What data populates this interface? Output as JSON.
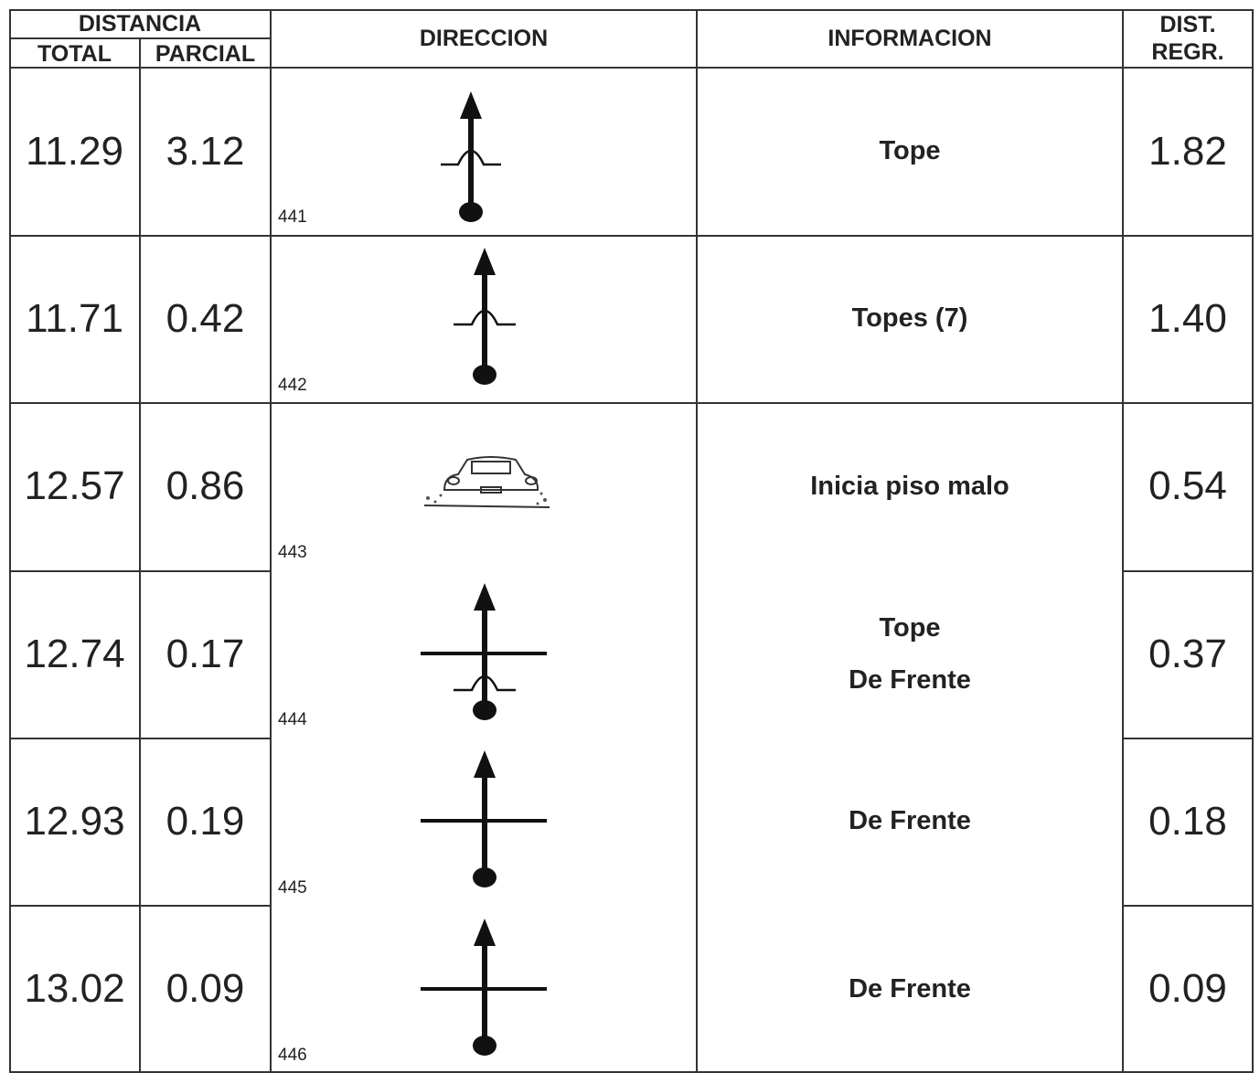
{
  "header": {
    "distancia": "DISTANCIA",
    "total": "TOTAL",
    "parcial": "PARCIAL",
    "direccion": "DIRECCION",
    "informacion": "INFORMACION",
    "dist_regr": [
      "DIST.",
      "REGR."
    ]
  },
  "rows": [
    {
      "total": "11.29",
      "parcial": "3.12",
      "id": "441",
      "info": [
        "Tope"
      ],
      "regr": "1.82"
    },
    {
      "total": "11.71",
      "parcial": "0.42",
      "id": "442",
      "info": [
        "Topes (7)"
      ],
      "regr": "1.40"
    },
    {
      "total": "12.57",
      "parcial": "0.86",
      "id": "443",
      "info": [
        "Inicia piso malo"
      ],
      "regr": "0.54"
    },
    {
      "total": "12.74",
      "parcial": "0.17",
      "id": "444",
      "info": [
        "Tope",
        "De Frente"
      ],
      "regr": "0.37"
    },
    {
      "total": "12.93",
      "parcial": "0.19",
      "id": "445",
      "info": [
        "De Frente"
      ],
      "regr": "0.18"
    },
    {
      "total": "13.02",
      "parcial": "0.09",
      "id": "446",
      "info": [
        "De Frente"
      ],
      "regr": "0.09"
    }
  ]
}
